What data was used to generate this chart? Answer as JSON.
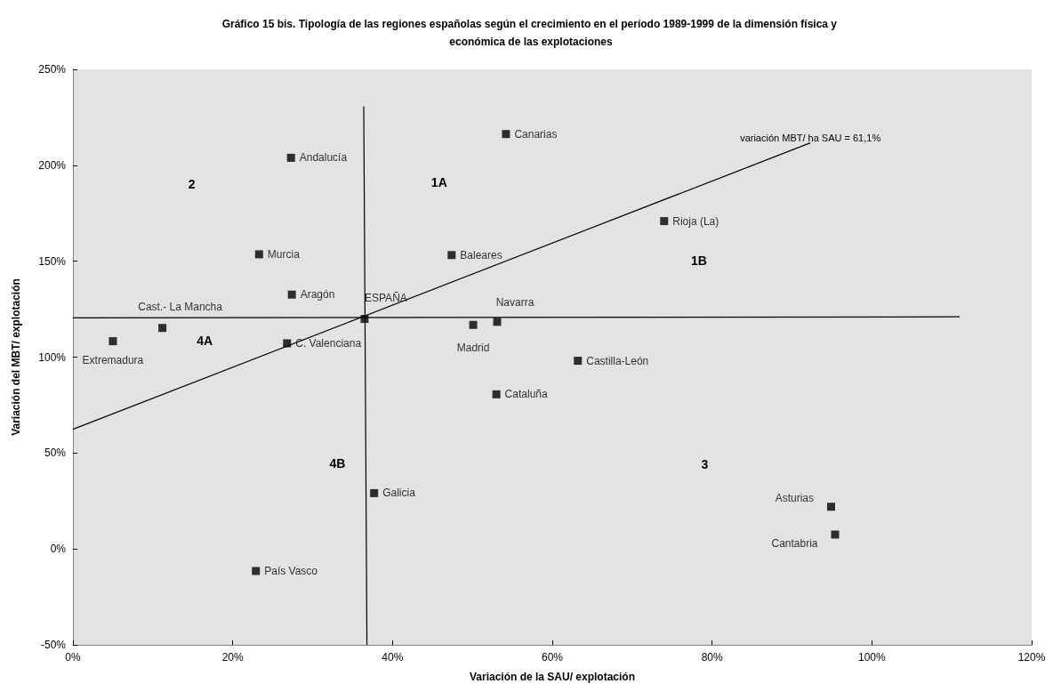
{
  "chart_data": {
    "type": "scatter",
    "title": "Gráfico 15 bis. Tipología de las regiones españolas según el crecimiento en el período 1989-1999 de la dimensión física y económica de las explotaciones",
    "xlabel": "Variación de la SAU/ explotación",
    "ylabel": "Variación del MBT/ explotación",
    "xlim": [
      0,
      120
    ],
    "xticks": [
      {
        "value": 0,
        "label": "0%"
      },
      {
        "value": 20,
        "label": "20%"
      },
      {
        "value": 40,
        "label": "40%"
      },
      {
        "value": 60,
        "label": "60%"
      },
      {
        "value": 80,
        "label": "80%"
      },
      {
        "value": 100,
        "label": "100%"
      },
      {
        "value": 120,
        "label": "120%"
      }
    ],
    "ylim": [
      -50,
      250
    ],
    "yticks": [
      {
        "value": -50,
        "label": "-50%"
      },
      {
        "value": 0,
        "label": "0%"
      },
      {
        "value": 50,
        "label": "50%"
      },
      {
        "value": 100,
        "label": "100%"
      },
      {
        "value": 150,
        "label": "150%"
      },
      {
        "value": 200,
        "label": "200%"
      },
      {
        "value": 250,
        "label": "250%"
      }
    ],
    "grid": false,
    "marker": "square",
    "series": [
      {
        "color": "#000000",
        "x": [
          27.3,
          23.3,
          27.4,
          36.5,
          11.2,
          5.0,
          26.8,
          54.2,
          47.4,
          74.0,
          50.1,
          53.1,
          63.2,
          53.0,
          37.7,
          22.9,
          94.9,
          95.4
        ],
        "values": [
          203.9,
          153.6,
          132.6,
          119.9,
          115.2,
          108.3,
          107.2,
          216.3,
          153.2,
          170.9,
          116.8,
          118.4,
          98.1,
          80.6,
          29.1,
          -11.5,
          22.0,
          7.5
        ],
        "value_labels": [
          "Andalucía",
          "Murcia",
          "Aragón",
          "ESPAÑA",
          "Cast.- La Mancha",
          "Extremadura",
          "C. Valenciana",
          "Canarias",
          "Baleares",
          "Rioja (La)",
          "Madrid",
          "Navarra",
          "Castilla-León",
          "Cataluña",
          "Galicia",
          "País Vasco",
          "Asturias",
          "Cantabria"
        ]
      },
      {
        "type": "line",
        "marker": "none",
        "color": "#000000",
        "x": [
          0,
          92.3
        ],
        "values": [
          62.4,
          211.7
        ]
      },
      {
        "type": "line",
        "marker": "none",
        "color": "#000000",
        "x": [
          36.4,
          36.8
        ],
        "values": [
          230.6,
          -50
        ]
      },
      {
        "type": "line",
        "marker": "none",
        "color": "#000000",
        "x": [
          0,
          111
        ],
        "values": [
          120.5,
          121
        ]
      }
    ],
    "annotations": [
      {
        "text": "variación MBT/ ha SAU = 61,1%",
        "x": 92.3,
        "y": 211.7
      },
      "2",
      "1A",
      "1B",
      "3",
      "4A",
      "4B"
    ]
  }
}
